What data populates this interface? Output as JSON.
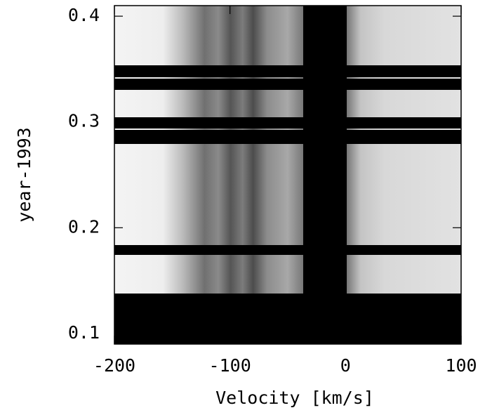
{
  "chart_data": {
    "type": "image",
    "x_label": "Velocity [km/s]",
    "y_label": "year-1993",
    "xlim": [
      -200,
      100
    ],
    "xticks": [
      -200,
      -100,
      0,
      100
    ],
    "ylim": [
      0.09,
      0.41
    ],
    "yticks": [
      0.1,
      0.2,
      0.3,
      0.4
    ]
  }
}
